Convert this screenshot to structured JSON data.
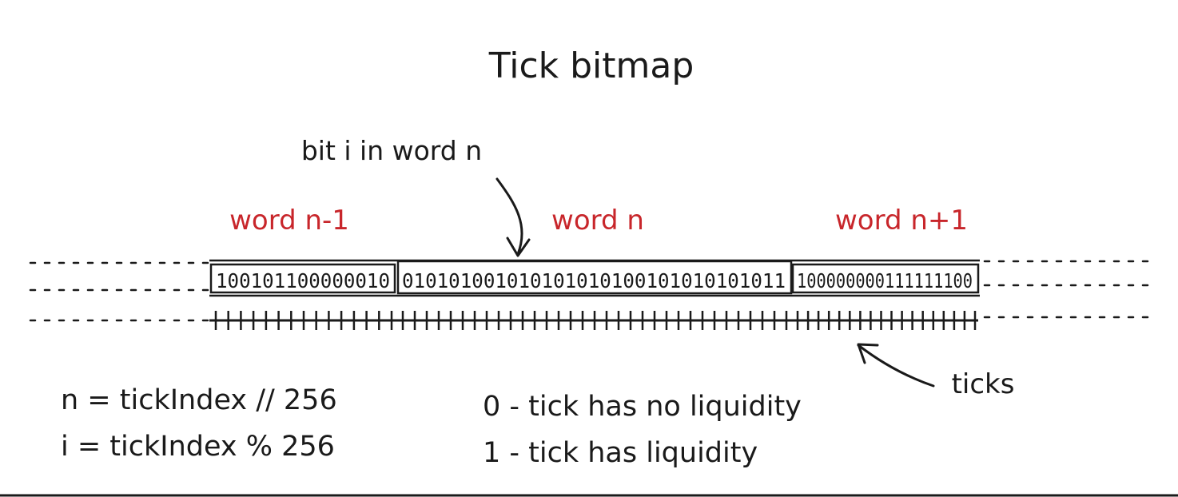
{
  "title": "Tick bitmap",
  "pointer_label": "bit i in word n",
  "words": [
    {
      "label": "word n-1",
      "bits": "100101100000010"
    },
    {
      "label": "word n",
      "bits": "010101001010101010100101010101011"
    },
    {
      "label": "word n+1",
      "bits": "100000000111111100"
    }
  ],
  "ticks_label": "ticks",
  "formulas": [
    "n = tickIndex // 256",
    "i = tickIndex % 256"
  ],
  "legend": [
    "0 - tick has no liquidity",
    "1 - tick has liquidity"
  ],
  "colors": {
    "ink": "#1a1a1a",
    "accent": "#c8262b",
    "background": "#ffffff"
  }
}
